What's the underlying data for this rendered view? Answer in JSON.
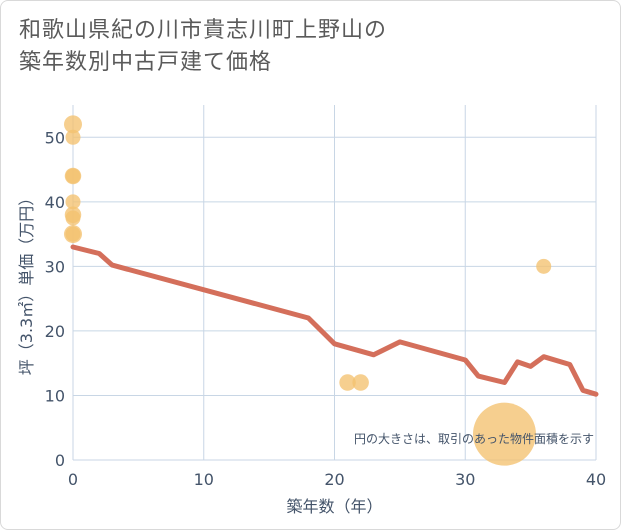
{
  "chart_data": {
    "type": "scatter",
    "title": "和歌山県紀の川市貴志川町上野山の\n築年数別中古戸建て価格",
    "xlabel": "築年数（年）",
    "ylabel": "坪（3.3㎡）単価（万円）",
    "xlim": [
      0,
      40
    ],
    "ylim": [
      0,
      55
    ],
    "x_ticks": [
      0,
      10,
      20,
      30,
      40
    ],
    "y_ticks": [
      0,
      10,
      20,
      30,
      40,
      50
    ],
    "grid": true,
    "note": "円の大きさは、取引のあった物件面積を示す",
    "colors": {
      "point": "#f3c26f",
      "line": "#d46f5b",
      "grid": "#c8d6e5",
      "text": "#44546a"
    },
    "points": [
      {
        "x": 0,
        "y": 52,
        "size": 1.2
      },
      {
        "x": 0,
        "y": 50,
        "size": 1
      },
      {
        "x": 0,
        "y": 44,
        "size": 1.1
      },
      {
        "x": 0,
        "y": 44,
        "size": 1
      },
      {
        "x": 0,
        "y": 40,
        "size": 1
      },
      {
        "x": 0,
        "y": 38,
        "size": 1.1
      },
      {
        "x": 0,
        "y": 37.5,
        "size": 1
      },
      {
        "x": 0,
        "y": 35,
        "size": 1.2
      },
      {
        "x": 0,
        "y": 35,
        "size": 1
      },
      {
        "x": 21,
        "y": 12,
        "size": 1.1
      },
      {
        "x": 22,
        "y": 12,
        "size": 1.1
      },
      {
        "x": 33,
        "y": 4,
        "size": 4.2
      },
      {
        "x": 36,
        "y": 30,
        "size": 1
      }
    ],
    "trend": {
      "x": [
        0,
        2,
        3,
        18,
        20,
        23,
        25,
        30,
        31,
        33,
        34,
        35,
        36,
        38,
        39,
        40
      ],
      "y": [
        33,
        32,
        30.2,
        22,
        18,
        16.3,
        18.3,
        15.5,
        13,
        12,
        15.2,
        14.5,
        16,
        14.8,
        10.8,
        10.2
      ]
    }
  }
}
